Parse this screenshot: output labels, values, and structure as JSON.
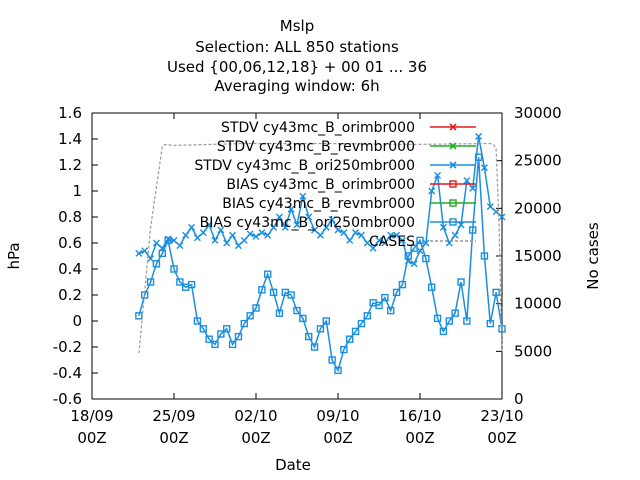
{
  "chart_data": {
    "type": "line",
    "title_lines": [
      "Mslp",
      "Selection: ALL    850 stations",
      "Used {00,06,12,18} + 00 01 ... 36",
      "Averaging window:  6h"
    ],
    "xlabel": "Date",
    "ylabel": "hPa",
    "y2label": "No cases",
    "xlim": [
      "2023-09-18",
      "2023-10-23"
    ],
    "ylim": [
      -0.6,
      1.6
    ],
    "y2lim": [
      0,
      30000
    ],
    "x_ticks": [
      {
        "date": "2023-09-18",
        "line1": "18/09",
        "line2": "00Z"
      },
      {
        "date": "2023-09-25",
        "line1": "25/09",
        "line2": "00Z"
      },
      {
        "date": "2023-10-02",
        "line1": "02/10",
        "line2": "00Z"
      },
      {
        "date": "2023-10-09",
        "line1": "09/10",
        "line2": "00Z"
      },
      {
        "date": "2023-10-16",
        "line1": "16/10",
        "line2": "00Z"
      },
      {
        "date": "2023-10-23",
        "line1": "23/10",
        "line2": "00Z"
      }
    ],
    "y_ticks": [
      "1.6",
      "1.4",
      "1.2",
      "1",
      "0.8",
      "0.6",
      "0.4",
      "0.2",
      "0",
      "-0.2",
      "-0.4",
      "-0.6"
    ],
    "y2_ticks": [
      "30000",
      "25000",
      "20000",
      "15000",
      "10000",
      "5000",
      "0"
    ],
    "grid": false,
    "legend_position": "top-right",
    "legend": [
      {
        "label": "STDV cy43mc_B_orimbr000",
        "color": "#e41a1c",
        "marker": "x"
      },
      {
        "label": "STDV cy43mc_B_revmbr000",
        "color": "#22aa22",
        "marker": "x"
      },
      {
        "label": "STDV cy43mc_B_ori250mbr000",
        "color": "#1a8fe0",
        "marker": "x"
      },
      {
        "label": "BIAS cy43mc_B_orimbr000",
        "color": "#e41a1c",
        "marker": "square"
      },
      {
        "label": "BIAS cy43mc_B_revmbr000",
        "color": "#22aa22",
        "marker": "square"
      },
      {
        "label": "BIAS cy43mc_B_ori250mbr000",
        "color": "#1a8fe0",
        "marker": "square"
      },
      {
        "label": "CASES",
        "color": "#999999",
        "marker": "none"
      }
    ],
    "series": [
      {
        "name": "STDV cy43mc_B_ori250mbr000",
        "color": "#1a8fe0",
        "marker": "x",
        "x": [
          "2023-09-22T00",
          "2023-09-22T12",
          "2023-09-23T00",
          "2023-09-23T12",
          "2023-09-24T00",
          "2023-09-24T12",
          "2023-09-25T00",
          "2023-09-25T12",
          "2023-09-26T00",
          "2023-09-26T12",
          "2023-09-27T00",
          "2023-09-27T12",
          "2023-09-28T00",
          "2023-09-28T12",
          "2023-09-29T00",
          "2023-09-29T12",
          "2023-09-30T00",
          "2023-09-30T12",
          "2023-10-01T00",
          "2023-10-01T12",
          "2023-10-02T00",
          "2023-10-02T12",
          "2023-10-03T00",
          "2023-10-03T12",
          "2023-10-04T00",
          "2023-10-04T12",
          "2023-10-05T00",
          "2023-10-05T12",
          "2023-10-06T00",
          "2023-10-06T12",
          "2023-10-07T00",
          "2023-10-07T12",
          "2023-10-08T00",
          "2023-10-08T12",
          "2023-10-09T00",
          "2023-10-09T12",
          "2023-10-10T00",
          "2023-10-10T12",
          "2023-10-11T00",
          "2023-10-11T12",
          "2023-10-12T00",
          "2023-10-12T12",
          "2023-10-13T00",
          "2023-10-13T12",
          "2023-10-14T00",
          "2023-10-14T12",
          "2023-10-15T00",
          "2023-10-15T12",
          "2023-10-16T00",
          "2023-10-16T12",
          "2023-10-17T00",
          "2023-10-17T12",
          "2023-10-18T00",
          "2023-10-18T12",
          "2023-10-19T00",
          "2023-10-19T12",
          "2023-10-20T00",
          "2023-10-20T12",
          "2023-10-21T00",
          "2023-10-21T12",
          "2023-10-22T00",
          "2023-10-22T12",
          "2023-10-23T00"
        ],
        "y": [
          0.52,
          0.54,
          0.48,
          0.6,
          0.56,
          0.63,
          0.62,
          0.58,
          0.66,
          0.72,
          0.64,
          0.68,
          0.74,
          0.62,
          0.7,
          0.6,
          0.66,
          0.58,
          0.62,
          0.67,
          0.65,
          0.68,
          0.66,
          0.72,
          0.8,
          0.72,
          0.86,
          0.74,
          0.96,
          0.8,
          0.7,
          0.66,
          0.72,
          0.78,
          0.7,
          0.68,
          0.62,
          0.68,
          0.66,
          0.6,
          0.56,
          0.62,
          0.6,
          0.66,
          0.66,
          0.62,
          0.46,
          0.44,
          0.54,
          0.6,
          1.0,
          1.12,
          0.72,
          0.6,
          0.66,
          0.74,
          1.08,
          1.02,
          1.42,
          1.18,
          0.88,
          0.84,
          0.8
        ]
      },
      {
        "name": "BIAS cy43mc_B_ori250mbr000",
        "color": "#1a8fe0",
        "marker": "square",
        "x": [
          "2023-09-22T00",
          "2023-09-22T12",
          "2023-09-23T00",
          "2023-09-23T12",
          "2023-09-24T00",
          "2023-09-24T12",
          "2023-09-25T00",
          "2023-09-25T12",
          "2023-09-26T00",
          "2023-09-26T12",
          "2023-09-27T00",
          "2023-09-27T12",
          "2023-09-28T00",
          "2023-09-28T12",
          "2023-09-29T00",
          "2023-09-29T12",
          "2023-09-30T00",
          "2023-09-30T12",
          "2023-10-01T00",
          "2023-10-01T12",
          "2023-10-02T00",
          "2023-10-02T12",
          "2023-10-03T00",
          "2023-10-03T12",
          "2023-10-04T00",
          "2023-10-04T12",
          "2023-10-05T00",
          "2023-10-05T12",
          "2023-10-06T00",
          "2023-10-06T12",
          "2023-10-07T00",
          "2023-10-07T12",
          "2023-10-08T00",
          "2023-10-08T12",
          "2023-10-09T00",
          "2023-10-09T12",
          "2023-10-10T00",
          "2023-10-10T12",
          "2023-10-11T00",
          "2023-10-11T12",
          "2023-10-12T00",
          "2023-10-12T12",
          "2023-10-13T00",
          "2023-10-13T12",
          "2023-10-14T00",
          "2023-10-14T12",
          "2023-10-15T00",
          "2023-10-15T12",
          "2023-10-16T00",
          "2023-10-16T12",
          "2023-10-17T00",
          "2023-10-17T12",
          "2023-10-18T00",
          "2023-10-18T12",
          "2023-10-19T00",
          "2023-10-19T12",
          "2023-10-20T00",
          "2023-10-20T12",
          "2023-10-21T00",
          "2023-10-21T12",
          "2023-10-22T00",
          "2023-10-22T12",
          "2023-10-23T00"
        ],
        "y": [
          0.04,
          0.2,
          0.3,
          0.44,
          0.52,
          0.62,
          0.4,
          0.3,
          0.26,
          0.28,
          0.0,
          -0.06,
          -0.14,
          -0.18,
          -0.1,
          -0.06,
          -0.18,
          -0.12,
          -0.02,
          0.04,
          0.1,
          0.24,
          0.36,
          0.22,
          0.06,
          0.22,
          0.2,
          0.08,
          0.02,
          -0.12,
          -0.2,
          -0.06,
          0.0,
          -0.3,
          -0.38,
          -0.22,
          -0.14,
          -0.08,
          -0.02,
          0.04,
          0.14,
          0.12,
          0.18,
          0.08,
          0.22,
          0.28,
          0.5,
          0.56,
          0.62,
          0.48,
          0.26,
          0.02,
          -0.08,
          0.0,
          0.06,
          0.3,
          0.0,
          0.7,
          1.26,
          0.5,
          -0.02,
          0.22,
          -0.06
        ]
      },
      {
        "name": "CASES",
        "color": "#999999",
        "axis": "y2",
        "x": [
          "2023-09-22T00",
          "2023-09-22T06",
          "2023-09-23T00",
          "2023-09-24T00",
          "2023-09-24T06",
          "2023-09-25T00",
          "2023-10-01T00",
          "2023-10-08T00",
          "2023-10-15T00",
          "2023-10-22T00",
          "2023-10-22T06",
          "2023-10-22T12",
          "2023-10-22T18",
          "2023-10-23T00"
        ],
        "y": [
          4800,
          8000,
          18000,
          26500,
          26700,
          26600,
          26800,
          26800,
          26700,
          26800,
          26700,
          26300,
          18000,
          5000
        ]
      }
    ]
  }
}
